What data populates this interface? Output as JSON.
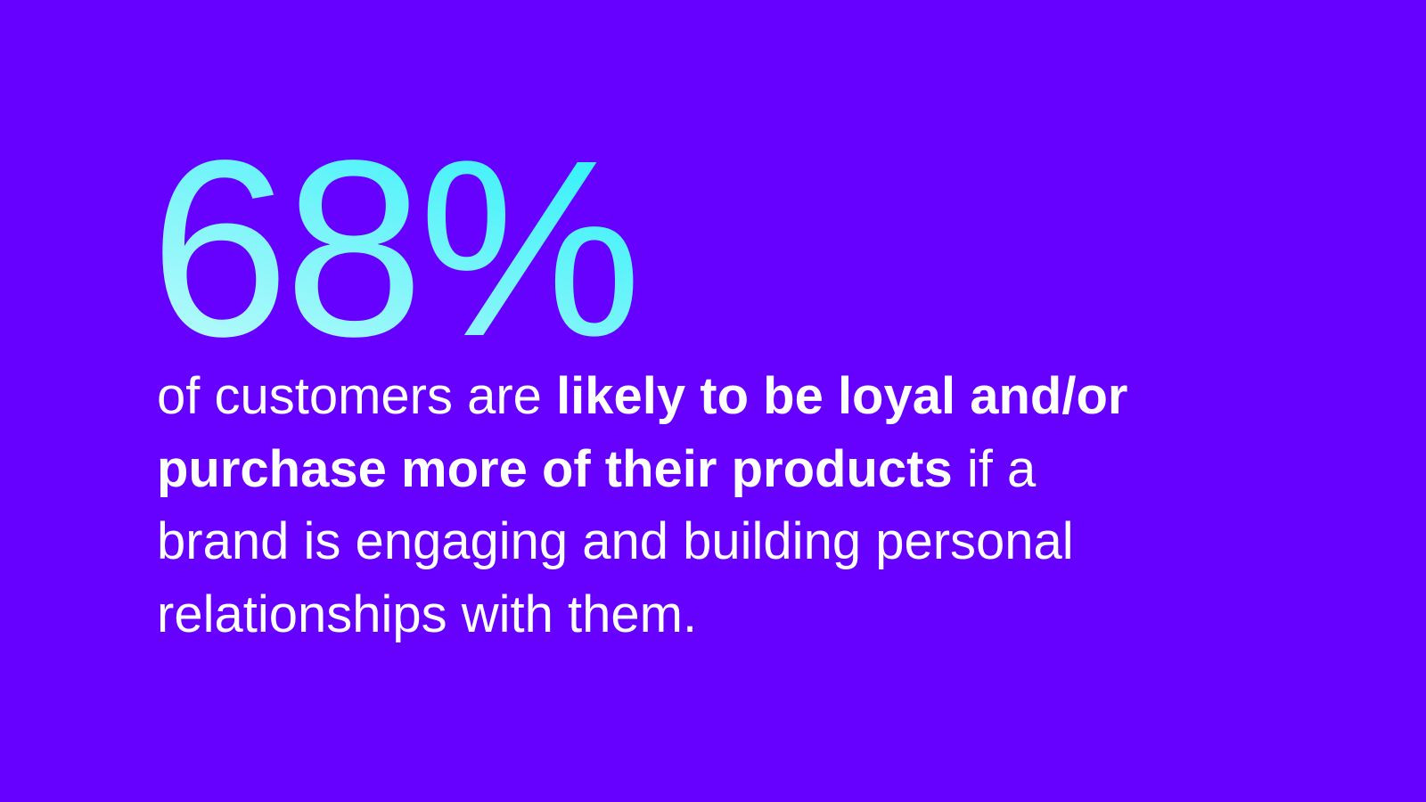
{
  "stat": {
    "value": "68%",
    "gradient_colors": [
      "#22f0fa",
      "#c4fbfb"
    ]
  },
  "background_color": "#6600ff",
  "statement": {
    "line1_regular": "of customers are ",
    "line1_bold": "likely to be loyal and/or",
    "line2_bold": "purchase more of their products",
    "line2_regular": " if a",
    "line3": "brand is engaging and building personal",
    "line4": "relationships with them."
  }
}
